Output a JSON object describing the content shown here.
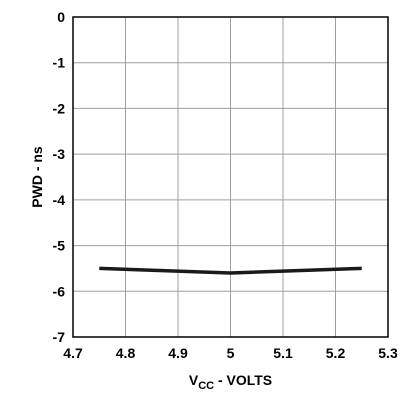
{
  "chart_data": {
    "type": "line",
    "title": "",
    "xlabel": {
      "main": "V",
      "sub": "CC",
      "rest": " - VOLTS"
    },
    "ylabel": "PWD - ns",
    "xlim": [
      4.7,
      5.3
    ],
    "ylim": [
      -7,
      0
    ],
    "x_ticks": [
      "4.7",
      "4.8",
      "4.9",
      "5",
      "5.1",
      "5.2",
      "5.3"
    ],
    "y_ticks": [
      "0",
      "-1",
      "-2",
      "-3",
      "-4",
      "-5",
      "-6",
      "-7"
    ],
    "grid": true,
    "series": [
      {
        "x": [
          4.75,
          5.0,
          5.25
        ],
        "y": [
          -5.5,
          -5.6,
          -5.5
        ]
      }
    ]
  }
}
